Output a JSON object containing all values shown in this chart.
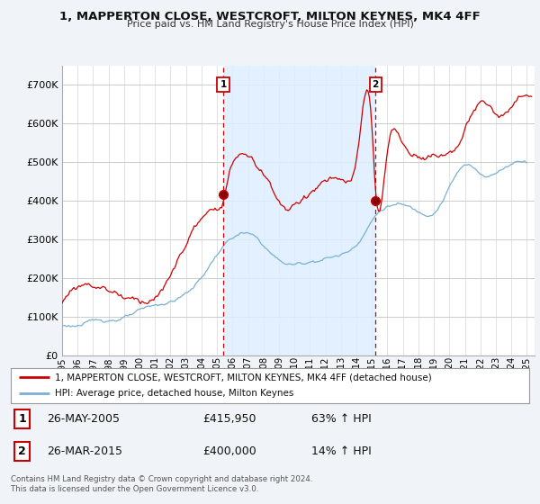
{
  "title": "1, MAPPERTON CLOSE, WESTCROFT, MILTON KEYNES, MK4 4FF",
  "subtitle": "Price paid vs. HM Land Registry's House Price Index (HPI)",
  "legend_line1": "1, MAPPERTON CLOSE, WESTCROFT, MILTON KEYNES, MK4 4FF (detached house)",
  "legend_line2": "HPI: Average price, detached house, Milton Keynes",
  "transaction1_date": "26-MAY-2005",
  "transaction1_price": "£415,950",
  "transaction1_hpi": "63% ↑ HPI",
  "transaction1_year": 2005.4,
  "transaction1_value": 415950,
  "transaction2_date": "26-MAR-2015",
  "transaction2_price": "£400,000",
  "transaction2_hpi": "14% ↑ HPI",
  "transaction2_year": 2015.23,
  "transaction2_value": 400000,
  "footer": "Contains HM Land Registry data © Crown copyright and database right 2024.\nThis data is licensed under the Open Government Licence v3.0.",
  "house_color": "#cc0000",
  "hpi_color": "#7ab0d4",
  "shade_color": "#ddeeff",
  "background_color": "#f0f4f8",
  "plot_bg_color": "#ffffff",
  "grid_color": "#cccccc",
  "ylim": [
    0,
    750000
  ],
  "yticks": [
    0,
    100000,
    200000,
    300000,
    400000,
    500000,
    600000,
    700000
  ],
  "xmin": 1995,
  "xmax": 2025.5
}
